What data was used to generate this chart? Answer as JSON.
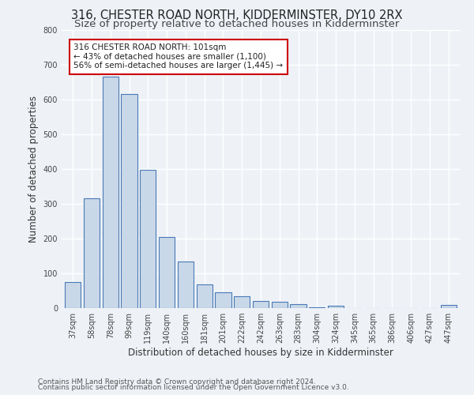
{
  "title": "316, CHESTER ROAD NORTH, KIDDERMINSTER, DY10 2RX",
  "subtitle": "Size of property relative to detached houses in Kidderminster",
  "xlabel": "Distribution of detached houses by size in Kidderminster",
  "ylabel": "Number of detached properties",
  "footer1": "Contains HM Land Registry data © Crown copyright and database right 2024.",
  "footer2": "Contains public sector information licensed under the Open Government Licence v3.0.",
  "categories": [
    "37sqm",
    "58sqm",
    "78sqm",
    "99sqm",
    "119sqm",
    "140sqm",
    "160sqm",
    "181sqm",
    "201sqm",
    "222sqm",
    "242sqm",
    "263sqm",
    "283sqm",
    "304sqm",
    "324sqm",
    "345sqm",
    "365sqm",
    "386sqm",
    "406sqm",
    "427sqm",
    "447sqm"
  ],
  "values": [
    75,
    315,
    665,
    615,
    398,
    205,
    135,
    68,
    46,
    35,
    20,
    18,
    12,
    2,
    6,
    0,
    0,
    0,
    0,
    0,
    8
  ],
  "bar_color": "#c8d8e8",
  "bar_edge_color": "#4a7ab5",
  "annotation_text": "316 CHESTER ROAD NORTH: 101sqm\n← 43% of detached houses are smaller (1,100)\n56% of semi-detached houses are larger (1,445) →",
  "annotation_box_color": "#ffffff",
  "annotation_box_edge_color": "#cc0000",
  "ylim": [
    0,
    800
  ],
  "yticks": [
    0,
    100,
    200,
    300,
    400,
    500,
    600,
    700,
    800
  ],
  "background_color": "#eef2f7",
  "grid_color": "#ffffff",
  "title_fontsize": 10.5,
  "subtitle_fontsize": 9.5,
  "label_fontsize": 8.5,
  "tick_fontsize": 7,
  "footer_fontsize": 6.5,
  "annotation_fontsize": 7.5
}
